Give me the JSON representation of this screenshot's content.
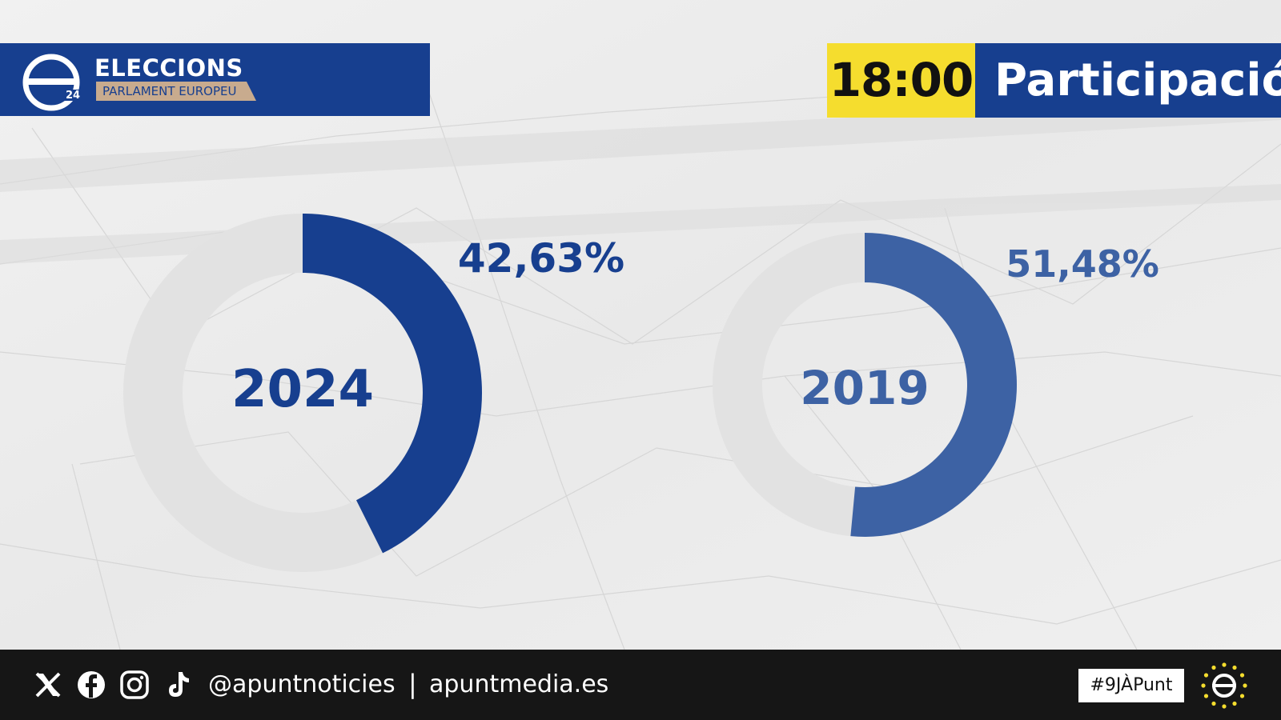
{
  "brand": {
    "logo_text": "24",
    "title": "ELECCIONS",
    "subtitle": "PARLAMENT EUROPEU"
  },
  "header": {
    "time": "18:00",
    "title": "Participació"
  },
  "chart_data": {
    "type": "pie",
    "series": [
      {
        "year": "2024",
        "value": 42.63,
        "label": "42,63%"
      },
      {
        "year": "2019",
        "value": 51.48,
        "label": "51,48%"
      }
    ]
  },
  "footer": {
    "handle": "@apuntnoticies",
    "separator": "|",
    "site": "apuntmedia.es",
    "hashtag": "#9JÀPunt",
    "social_icons": [
      "x-icon",
      "facebook-icon",
      "instagram-icon",
      "tiktok-icon"
    ]
  },
  "colors": {
    "brand_blue": "#173f8f",
    "light_blue": "#3d62a4",
    "yellow": "#f5dd2e",
    "ring_gray": "#e2e2e2",
    "footer": "#161616"
  }
}
